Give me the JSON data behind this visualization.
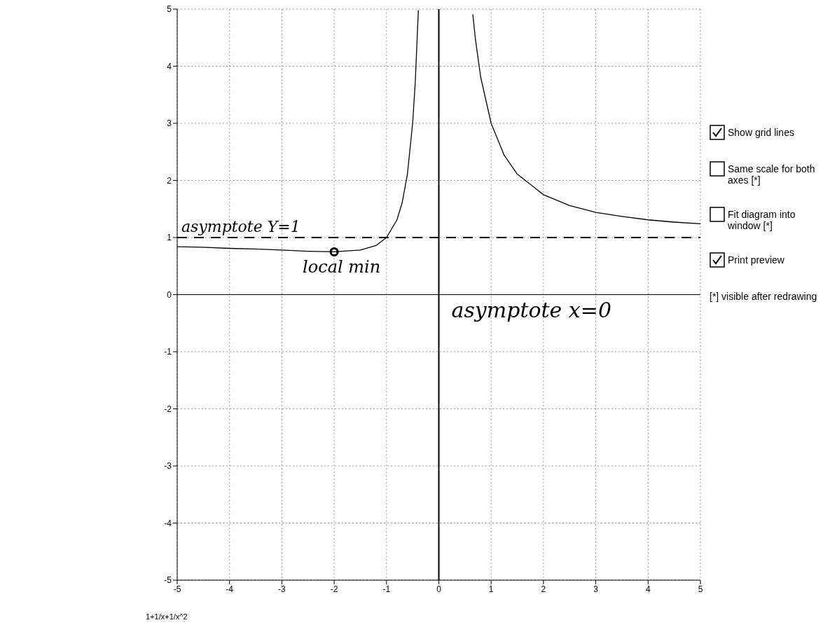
{
  "chart_data": {
    "type": "line",
    "color": "#000000",
    "x": [
      -5,
      -4.5,
      -4,
      -3.5,
      -3,
      -2.5,
      -2,
      -1.5,
      -1.2,
      -1,
      -0.8,
      -0.7,
      -0.6,
      -0.5,
      -0.45,
      -0.391,
      0,
      0.65,
      0.7,
      0.8,
      1,
      1.25,
      1.5,
      2,
      2.5,
      3,
      3.5,
      4,
      4.5,
      5
    ],
    "series": [
      {
        "values": [
          0.84,
          0.83,
          0.81,
          0.8,
          0.78,
          0.76,
          0.75,
          0.78,
          0.86,
          1,
          1.31,
          1.61,
          2.11,
          3,
          3.72,
          4.98,
          null,
          4.91,
          4.47,
          3.81,
          3,
          2.44,
          2.11,
          1.75,
          1.56,
          1.44,
          1.37,
          1.31,
          1.27,
          1.24
        ]
      },
      {
        "type": "scatter",
        "color": "#000000",
        "x": [
          -2
        ],
        "values": [
          0.75
        ],
        "marker": "circle"
      }
    ],
    "xlim": [
      -5,
      5
    ],
    "ylim": [
      -5,
      5
    ],
    "xticks": [
      -5,
      -4,
      -3,
      -2,
      -1,
      0,
      1,
      2,
      3,
      4,
      5
    ],
    "yticks": [
      -5,
      -4,
      -3,
      -2,
      -1,
      0,
      1,
      2,
      3,
      4,
      5
    ],
    "grid": true,
    "line_style": "solid",
    "ref_lines": [
      {
        "axis": "y",
        "value": 1,
        "label": "asymptote Y=1",
        "line_style": "dashed",
        "color": "#000000"
      },
      {
        "axis": "x",
        "value": 0,
        "label": "asymptote x=0",
        "color": "#000000"
      },
      {
        "axis": "y",
        "value": 0,
        "color": "#000000"
      }
    ],
    "annotations": [
      {
        "text": "local min",
        "x": -2,
        "y": 0.75
      },
      "1+1/x+1/x^2",
      "Show grid lines",
      "Same scale for both axes [*]",
      "Fit diagram into window [*]",
      "Print preview",
      "[*] visible after redrawing"
    ]
  }
}
